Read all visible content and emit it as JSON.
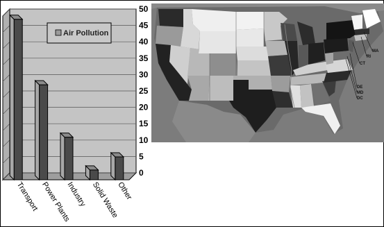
{
  "chart_data": {
    "type": "bar",
    "categories": [
      "Transport",
      "Power Plants",
      "Industry",
      "Solid Waste",
      "Other"
    ],
    "series": [
      {
        "name": "Air Pollution",
        "values": [
          49,
          29,
          13,
          3,
          7
        ]
      }
    ],
    "ylim": [
      0,
      50
    ],
    "yticks": [
      0,
      5,
      10,
      15,
      20,
      25,
      30,
      35,
      40,
      45,
      50
    ],
    "grid": true,
    "legend_position": "top-right",
    "bar_color": "#4a4a4a",
    "bar_side_color": "#a7a7a7",
    "wall_color": "#c4c4c4"
  },
  "map": {
    "state_labels": [
      "MA",
      "RI",
      "CT",
      "DE",
      "MD",
      "DC"
    ],
    "ocean_color": "#7c7c7c"
  }
}
